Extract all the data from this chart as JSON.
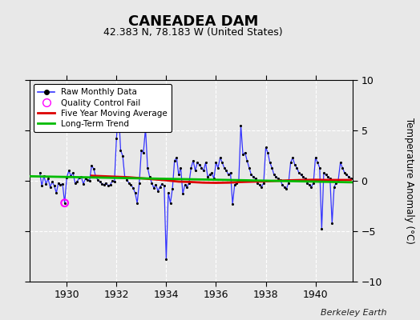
{
  "title": "CANEADEA DAM",
  "subtitle": "42.383 N, 78.183 W (United States)",
  "ylabel": "Temperature Anomaly (°C)",
  "credit": "Berkeley Earth",
  "xlim": [
    1928.5,
    1941.5
  ],
  "ylim": [
    -10,
    10
  ],
  "yticks": [
    -10,
    -5,
    0,
    5,
    10
  ],
  "xticks": [
    1930,
    1932,
    1934,
    1936,
    1938,
    1940
  ],
  "bg_color": "#e8e8e8",
  "plot_bg_color": "#e8e8e8",
  "raw_color": "#3333ff",
  "dot_color": "#000000",
  "ma_color": "#dd0000",
  "trend_color": "#00bb00",
  "qc_color": "#ff00ff",
  "raw_data": [
    [
      1928.917,
      0.8
    ],
    [
      1929.0,
      -0.5
    ],
    [
      1929.083,
      0.5
    ],
    [
      1929.167,
      -0.3
    ],
    [
      1929.25,
      0.2
    ],
    [
      1929.333,
      -0.6
    ],
    [
      1929.417,
      -0.1
    ],
    [
      1929.5,
      -0.5
    ],
    [
      1929.583,
      -1.2
    ],
    [
      1929.667,
      -0.2
    ],
    [
      1929.75,
      -0.4
    ],
    [
      1929.833,
      -0.3
    ],
    [
      1929.917,
      -2.2
    ],
    [
      1930.0,
      0.3
    ],
    [
      1930.083,
      1.0
    ],
    [
      1930.167,
      0.5
    ],
    [
      1930.25,
      0.8
    ],
    [
      1930.333,
      -0.2
    ],
    [
      1930.417,
      -0.1
    ],
    [
      1930.5,
      0.3
    ],
    [
      1930.583,
      0.4
    ],
    [
      1930.667,
      -0.3
    ],
    [
      1930.75,
      0.2
    ],
    [
      1930.833,
      0.1
    ],
    [
      1930.917,
      0.0
    ],
    [
      1931.0,
      1.5
    ],
    [
      1931.083,
      1.2
    ],
    [
      1931.167,
      0.4
    ],
    [
      1931.25,
      0.1
    ],
    [
      1931.333,
      -0.1
    ],
    [
      1931.417,
      -0.3
    ],
    [
      1931.5,
      -0.4
    ],
    [
      1931.583,
      -0.2
    ],
    [
      1931.667,
      -0.5
    ],
    [
      1931.75,
      -0.4
    ],
    [
      1931.833,
      0.0
    ],
    [
      1931.917,
      -0.1
    ],
    [
      1932.0,
      4.2
    ],
    [
      1932.083,
      7.2
    ],
    [
      1932.167,
      3.0
    ],
    [
      1932.25,
      2.5
    ],
    [
      1932.333,
      0.4
    ],
    [
      1932.417,
      0.1
    ],
    [
      1932.5,
      -0.2
    ],
    [
      1932.583,
      -0.4
    ],
    [
      1932.667,
      -0.7
    ],
    [
      1932.75,
      -1.2
    ],
    [
      1932.833,
      -2.2
    ],
    [
      1932.917,
      -0.2
    ],
    [
      1933.0,
      3.0
    ],
    [
      1933.083,
      2.8
    ],
    [
      1933.167,
      5.2
    ],
    [
      1933.25,
      1.3
    ],
    [
      1933.333,
      0.4
    ],
    [
      1933.417,
      -0.2
    ],
    [
      1933.5,
      -0.7
    ],
    [
      1933.583,
      -0.4
    ],
    [
      1933.667,
      -1.0
    ],
    [
      1933.75,
      -0.6
    ],
    [
      1933.833,
      -0.3
    ],
    [
      1933.917,
      -0.5
    ],
    [
      1934.0,
      -7.8
    ],
    [
      1934.083,
      -1.2
    ],
    [
      1934.167,
      -2.2
    ],
    [
      1934.25,
      -0.8
    ],
    [
      1934.333,
      2.0
    ],
    [
      1934.417,
      2.3
    ],
    [
      1934.5,
      0.6
    ],
    [
      1934.583,
      1.3
    ],
    [
      1934.667,
      -1.3
    ],
    [
      1934.75,
      -0.4
    ],
    [
      1934.833,
      -0.6
    ],
    [
      1934.917,
      -0.2
    ],
    [
      1935.0,
      1.3
    ],
    [
      1935.083,
      2.0
    ],
    [
      1935.167,
      1.0
    ],
    [
      1935.25,
      1.8
    ],
    [
      1935.333,
      1.6
    ],
    [
      1935.417,
      1.3
    ],
    [
      1935.5,
      1.0
    ],
    [
      1935.583,
      1.8
    ],
    [
      1935.667,
      0.4
    ],
    [
      1935.75,
      0.6
    ],
    [
      1935.833,
      0.8
    ],
    [
      1935.917,
      0.2
    ],
    [
      1936.0,
      1.8
    ],
    [
      1936.083,
      1.3
    ],
    [
      1936.167,
      2.3
    ],
    [
      1936.25,
      1.8
    ],
    [
      1936.333,
      1.3
    ],
    [
      1936.417,
      1.0
    ],
    [
      1936.5,
      0.6
    ],
    [
      1936.583,
      0.8
    ],
    [
      1936.667,
      -2.3
    ],
    [
      1936.75,
      -0.4
    ],
    [
      1936.833,
      -0.2
    ],
    [
      1936.917,
      0.1
    ],
    [
      1937.0,
      5.5
    ],
    [
      1937.083,
      2.6
    ],
    [
      1937.167,
      2.8
    ],
    [
      1937.25,
      2.0
    ],
    [
      1937.333,
      1.3
    ],
    [
      1937.417,
      0.6
    ],
    [
      1937.5,
      0.4
    ],
    [
      1937.583,
      0.2
    ],
    [
      1937.667,
      -0.2
    ],
    [
      1937.75,
      -0.4
    ],
    [
      1937.833,
      -0.6
    ],
    [
      1937.917,
      -0.2
    ],
    [
      1938.0,
      3.3
    ],
    [
      1938.083,
      2.8
    ],
    [
      1938.167,
      1.8
    ],
    [
      1938.25,
      1.3
    ],
    [
      1938.333,
      0.6
    ],
    [
      1938.417,
      0.4
    ],
    [
      1938.5,
      0.2
    ],
    [
      1938.583,
      0.1
    ],
    [
      1938.667,
      -0.4
    ],
    [
      1938.75,
      -0.6
    ],
    [
      1938.833,
      -0.8
    ],
    [
      1938.917,
      -0.2
    ],
    [
      1939.0,
      1.8
    ],
    [
      1939.083,
      2.3
    ],
    [
      1939.167,
      1.6
    ],
    [
      1939.25,
      1.3
    ],
    [
      1939.333,
      0.8
    ],
    [
      1939.417,
      0.6
    ],
    [
      1939.5,
      0.4
    ],
    [
      1939.583,
      0.2
    ],
    [
      1939.667,
      -0.2
    ],
    [
      1939.75,
      -0.4
    ],
    [
      1939.833,
      -0.6
    ],
    [
      1939.917,
      -0.2
    ],
    [
      1940.0,
      2.3
    ],
    [
      1940.083,
      1.8
    ],
    [
      1940.167,
      1.3
    ],
    [
      1940.25,
      -4.8
    ],
    [
      1940.333,
      0.8
    ],
    [
      1940.417,
      0.6
    ],
    [
      1940.5,
      0.4
    ],
    [
      1940.583,
      0.2
    ],
    [
      1940.667,
      -4.2
    ],
    [
      1940.75,
      -0.6
    ],
    [
      1940.833,
      -0.2
    ],
    [
      1940.917,
      0.1
    ],
    [
      1941.0,
      1.8
    ],
    [
      1941.083,
      1.3
    ],
    [
      1941.167,
      0.8
    ],
    [
      1941.25,
      0.6
    ],
    [
      1941.333,
      0.4
    ],
    [
      1941.417,
      0.2
    ]
  ],
  "qc_fail": [
    [
      1929.917,
      -2.2
    ]
  ],
  "moving_avg": [
    [
      1931.0,
      0.5
    ],
    [
      1931.5,
      0.45
    ],
    [
      1932.0,
      0.4
    ],
    [
      1932.5,
      0.35
    ],
    [
      1933.0,
      0.25
    ],
    [
      1933.5,
      0.15
    ],
    [
      1934.0,
      0.05
    ],
    [
      1934.5,
      -0.08
    ],
    [
      1935.0,
      -0.12
    ],
    [
      1935.5,
      -0.18
    ],
    [
      1936.0,
      -0.2
    ],
    [
      1936.5,
      -0.18
    ],
    [
      1937.0,
      -0.12
    ],
    [
      1937.5,
      -0.08
    ],
    [
      1938.0,
      -0.05
    ],
    [
      1938.5,
      0.0
    ],
    [
      1939.0,
      0.05
    ],
    [
      1939.5,
      0.08
    ],
    [
      1940.0,
      0.1
    ],
    [
      1940.5,
      0.08
    ],
    [
      1941.0,
      0.08
    ],
    [
      1941.417,
      0.08
    ]
  ],
  "trend_x": [
    1928.5,
    1941.5
  ],
  "trend_y": [
    0.45,
    -0.15
  ]
}
